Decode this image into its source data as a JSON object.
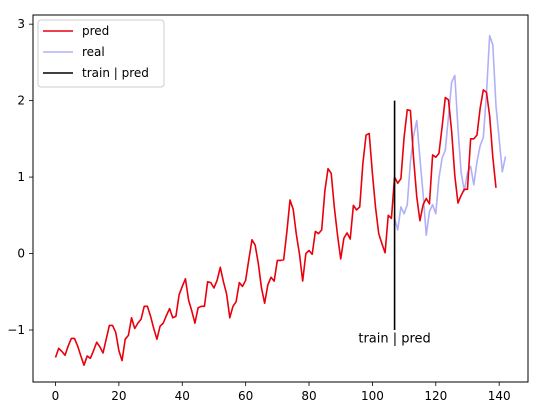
{
  "chart_data": {
    "type": "line",
    "title": "",
    "xlabel": "",
    "ylabel": "",
    "xlim": [
      -7.1,
      149.1
    ],
    "ylim": [
      -1.68,
      3.12
    ],
    "grid": false,
    "legend_position": "top-left",
    "x_ticks": [
      0,
      20,
      40,
      60,
      80,
      100,
      120,
      140
    ],
    "y_ticks": [
      -1,
      0,
      1,
      2,
      3
    ],
    "y_tick_labels": [
      "−1",
      "0",
      "1",
      "2",
      "3"
    ],
    "series": [
      {
        "name": "pred",
        "color": "#e8000b",
        "x_start": 0,
        "values": [
          -1.36,
          -1.24,
          -1.28,
          -1.33,
          -1.21,
          -1.11,
          -1.11,
          -1.21,
          -1.34,
          -1.46,
          -1.34,
          -1.37,
          -1.27,
          -1.16,
          -1.22,
          -1.3,
          -1.12,
          -0.94,
          -0.94,
          -1.03,
          -1.27,
          -1.4,
          -1.12,
          -1.07,
          -0.84,
          -0.98,
          -0.91,
          -0.86,
          -0.69,
          -0.69,
          -0.82,
          -0.98,
          -1.12,
          -0.95,
          -0.91,
          -0.81,
          -0.72,
          -0.84,
          -0.82,
          -0.54,
          -0.43,
          -0.33,
          -0.61,
          -0.75,
          -0.91,
          -0.71,
          -0.69,
          -0.69,
          -0.37,
          -0.38,
          -0.45,
          -0.35,
          -0.18,
          -0.37,
          -0.53,
          -0.84,
          -0.69,
          -0.63,
          -0.38,
          -0.43,
          -0.35,
          -0.08,
          0.18,
          0.11,
          -0.13,
          -0.45,
          -0.65,
          -0.41,
          -0.31,
          -0.36,
          -0.09,
          -0.09,
          -0.08,
          0.28,
          0.7,
          0.58,
          0.25,
          -0.01,
          -0.36,
          0.0,
          0.04,
          -0.01,
          0.29,
          0.26,
          0.31,
          0.82,
          1.11,
          1.05,
          0.6,
          0.24,
          -0.07,
          0.2,
          0.27,
          0.19,
          0.63,
          0.57,
          0.61,
          1.18,
          1.55,
          1.57,
          1.05,
          0.6,
          0.26,
          0.13,
          0.01,
          0.5,
          0.46,
          1.0,
          0.92,
          0.98,
          1.52,
          1.88,
          1.87,
          1.24,
          0.74,
          0.43,
          0.64,
          0.72,
          0.65,
          1.29,
          1.26,
          1.31,
          1.66,
          2.04,
          2.01,
          1.6,
          1.02,
          0.66,
          0.76,
          0.84,
          0.84,
          1.5,
          1.5,
          1.55,
          1.9,
          2.14,
          2.11,
          1.8,
          1.26,
          0.86
        ]
      },
      {
        "name": "real",
        "color": "#b0b0f8",
        "x_start": 107,
        "values": [
          0.46,
          0.31,
          0.61,
          0.52,
          0.64,
          1.2,
          1.54,
          1.74,
          1.24,
          0.78,
          0.24,
          0.55,
          0.64,
          0.52,
          0.99,
          1.25,
          1.35,
          1.79,
          2.24,
          2.33,
          1.64,
          1.06,
          0.82,
          1.06,
          1.14,
          0.9,
          1.2,
          1.41,
          1.52,
          2.09,
          2.85,
          2.73,
          1.93,
          1.5,
          1.07,
          1.27
        ]
      }
    ],
    "split_line": {
      "label": "train | pred",
      "x": 107,
      "y_range": [
        -1,
        2
      ],
      "color": "#000000"
    },
    "annotations": [
      {
        "text": "train | pred",
        "x": 107,
        "y": -1.1
      }
    ]
  }
}
